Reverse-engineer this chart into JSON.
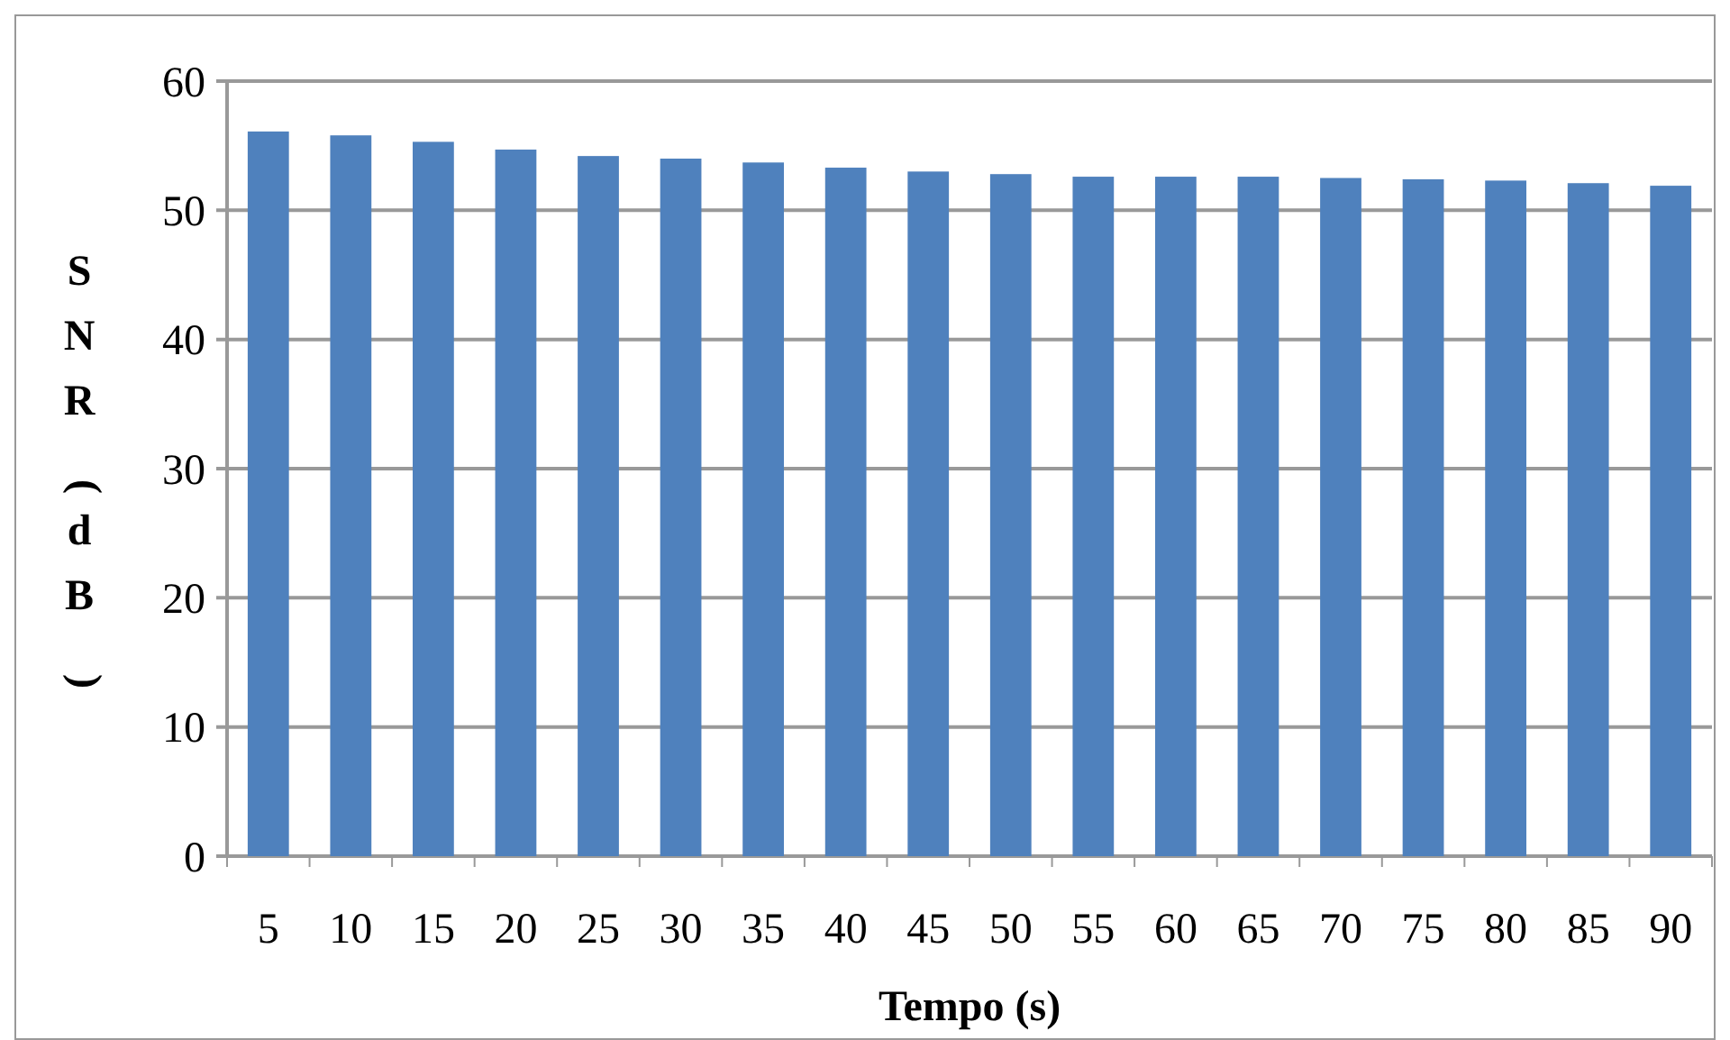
{
  "chart_data": {
    "type": "bar",
    "xlabel": "Tempo (s)",
    "ylabel": "SNR (dB)",
    "categories": [
      "5",
      "10",
      "15",
      "20",
      "25",
      "30",
      "35",
      "40",
      "45",
      "50",
      "55",
      "60",
      "65",
      "70",
      "75",
      "80",
      "85",
      "90"
    ],
    "values": [
      56.1,
      55.8,
      55.3,
      54.7,
      54.2,
      54.0,
      53.7,
      53.3,
      53.0,
      52.8,
      52.6,
      52.6,
      52.6,
      52.5,
      52.4,
      52.3,
      52.1,
      51.9
    ],
    "color": "#4f81bd",
    "ylim": [
      0,
      60
    ],
    "yticks": [
      0,
      10,
      20,
      30,
      40,
      50,
      60
    ],
    "grid": "y"
  }
}
